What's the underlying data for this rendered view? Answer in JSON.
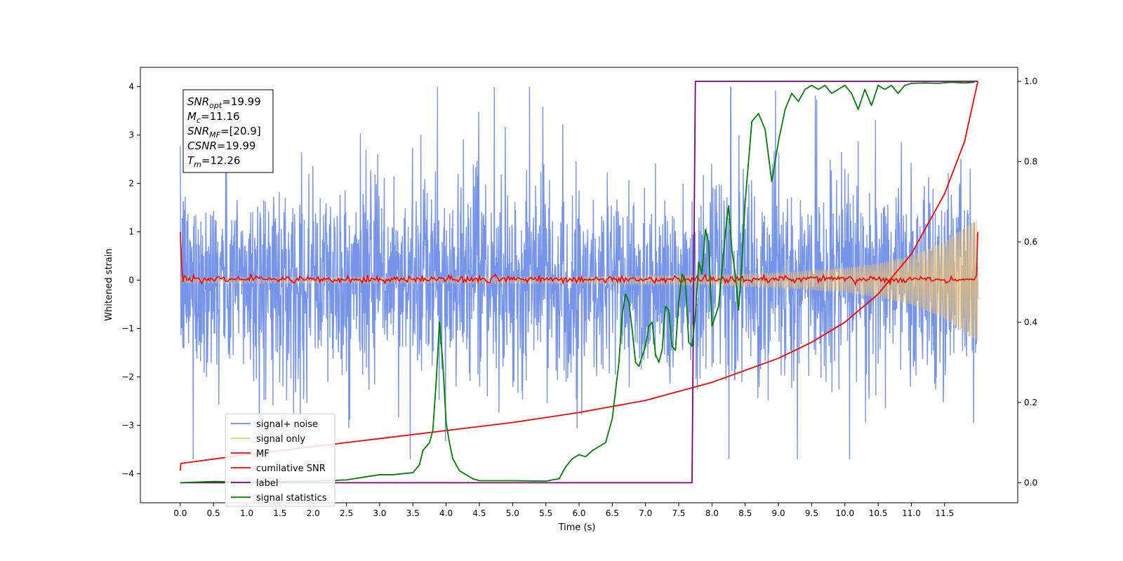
{
  "chart_data": {
    "type": "line",
    "xlabel": "Time (s)",
    "ylabel_left": "Whitened strain",
    "ylabel_right": "",
    "xlim": [
      -0.6,
      12.6
    ],
    "ylim_left": [
      -4.6,
      4.4
    ],
    "ylim_right": [
      -0.05,
      1.035
    ],
    "x_ticks": [
      0.0,
      0.5,
      1.0,
      1.5,
      2.0,
      2.5,
      3.0,
      3.5,
      4.0,
      4.5,
      5.0,
      5.5,
      6.0,
      6.5,
      7.0,
      7.5,
      8.0,
      8.5,
      9.0,
      9.5,
      10.0,
      10.5,
      11.0,
      11.5
    ],
    "x_tick_labels": [
      "0.0",
      "0.5",
      "1.0",
      "1.5",
      "2.0",
      "2.5",
      "3.0",
      "3.5",
      "4.0",
      "4.5",
      "5.0",
      "5.5",
      "6.0",
      "6.5",
      "7.0",
      "7.5",
      "8.0",
      "8.5",
      "9.0",
      "9.5",
      "10.0",
      "10.5",
      "11.0",
      "11.5"
    ],
    "y_left_ticks": [
      -4,
      -3,
      -2,
      -1,
      0,
      1,
      2,
      3,
      4
    ],
    "y_left_tick_labels": [
      "−4",
      "−3",
      "−2",
      "−1",
      "0",
      "1",
      "2",
      "3",
      "4"
    ],
    "y_right_ticks": [
      0.0,
      0.2,
      0.4,
      0.6,
      0.8,
      1.0
    ],
    "y_right_tick_labels": [
      "0.0",
      "0.2",
      "0.4",
      "0.6",
      "0.8",
      "1.0"
    ],
    "grid": false,
    "legend_position": "bottom-left",
    "info_box": {
      "position": "top-left",
      "lines": [
        {
          "base": "SNR",
          "sub": "opt",
          "value": "=19.99"
        },
        {
          "base": "M",
          "sub": "c",
          "value": "=11.16"
        },
        {
          "base": "SNR",
          "sub": "MF",
          "value": "=[20.9]"
        },
        {
          "base": "CSNR",
          "sub": "",
          "value": "=19.99"
        },
        {
          "base": "T",
          "sub": "m",
          "value": "=12.26"
        }
      ]
    },
    "series": [
      {
        "name": "signal+ noise",
        "axis": "left",
        "color": "#6f8ee8",
        "style": "noise band",
        "t_range": [
          0.0,
          12.0
        ],
        "typical_range": [
          -1.6,
          1.6
        ],
        "peak_range": [
          -3.7,
          4.0
        ]
      },
      {
        "name": "signal only",
        "axis": "left",
        "color": "#f2c46c",
        "style": "chirp oscillation",
        "t_range": [
          0.0,
          12.0
        ],
        "envelope_t": [
          0.0,
          6.0,
          8.0,
          9.0,
          10.0,
          10.5,
          11.0,
          11.5,
          12.0
        ],
        "envelope_amp": [
          0.06,
          0.07,
          0.1,
          0.15,
          0.25,
          0.35,
          0.5,
          0.8,
          1.28
        ]
      },
      {
        "name": "MF",
        "axis": "left",
        "color": "#ff0000",
        "style": "noisy near zero",
        "t_range": [
          0.0,
          12.0
        ],
        "start_value": 1.0,
        "end_value": 1.0,
        "typical_range": [
          -0.08,
          0.12
        ]
      },
      {
        "name": "cumilative SNR",
        "axis": "right",
        "color": "#ff0000",
        "x": [
          0.0,
          0.01,
          1.0,
          2.0,
          3.0,
          4.0,
          5.0,
          6.0,
          7.0,
          8.0,
          9.0,
          9.5,
          10.0,
          10.5,
          11.0,
          11.5,
          11.8,
          12.0
        ],
        "y": [
          0.03,
          0.048,
          0.07,
          0.09,
          0.11,
          0.13,
          0.15,
          0.175,
          0.205,
          0.25,
          0.31,
          0.35,
          0.4,
          0.47,
          0.57,
          0.72,
          0.85,
          1.0
        ]
      },
      {
        "name": "label",
        "axis": "right",
        "color": "#800080",
        "x": [
          0.0,
          7.7,
          7.75,
          12.0
        ],
        "y": [
          0.0,
          0.0,
          1.0,
          1.0
        ]
      },
      {
        "name": "signal statistics",
        "axis": "right",
        "color": "#008000",
        "x": [
          0.0,
          0.5,
          1.0,
          1.5,
          2.0,
          2.5,
          2.8,
          3.0,
          3.2,
          3.5,
          3.6,
          3.65,
          3.75,
          3.8,
          3.85,
          3.9,
          3.95,
          4.0,
          4.05,
          4.1,
          4.2,
          4.3,
          4.4,
          4.5,
          5.0,
          5.5,
          5.7,
          5.8,
          5.9,
          6.0,
          6.1,
          6.2,
          6.3,
          6.4,
          6.5,
          6.6,
          6.65,
          6.7,
          6.75,
          6.8,
          6.85,
          6.9,
          7.0,
          7.05,
          7.1,
          7.15,
          7.2,
          7.25,
          7.3,
          7.35,
          7.4,
          7.45,
          7.5,
          7.55,
          7.6,
          7.65,
          7.7,
          7.75,
          7.8,
          7.85,
          7.9,
          7.95,
          8.0,
          8.1,
          8.2,
          8.25,
          8.3,
          8.35,
          8.4,
          8.45,
          8.5,
          8.55,
          8.6,
          8.7,
          8.8,
          8.9,
          9.0,
          9.1,
          9.2,
          9.3,
          9.4,
          9.5,
          9.6,
          9.7,
          9.8,
          9.9,
          10.0,
          10.1,
          10.2,
          10.3,
          10.4,
          10.5,
          10.6,
          10.7,
          10.8,
          10.9,
          11.0,
          11.2,
          11.4,
          11.6,
          11.8,
          11.95
        ],
        "y": [
          0.0,
          0.003,
          0.002,
          0.003,
          0.004,
          0.007,
          0.015,
          0.02,
          0.02,
          0.025,
          0.045,
          0.08,
          0.1,
          0.13,
          0.25,
          0.4,
          0.3,
          0.15,
          0.1,
          0.06,
          0.03,
          0.02,
          0.01,
          0.005,
          0.005,
          0.004,
          0.01,
          0.04,
          0.06,
          0.07,
          0.065,
          0.08,
          0.09,
          0.1,
          0.16,
          0.3,
          0.42,
          0.47,
          0.45,
          0.38,
          0.3,
          0.29,
          0.34,
          0.39,
          0.4,
          0.32,
          0.3,
          0.33,
          0.44,
          0.43,
          0.34,
          0.33,
          0.45,
          0.52,
          0.5,
          0.35,
          0.34,
          0.42,
          0.55,
          0.52,
          0.63,
          0.6,
          0.39,
          0.44,
          0.62,
          0.69,
          0.58,
          0.52,
          0.43,
          0.55,
          0.7,
          0.8,
          0.9,
          0.92,
          0.88,
          0.75,
          0.85,
          0.93,
          0.97,
          0.95,
          0.98,
          0.99,
          0.98,
          0.99,
          0.97,
          0.98,
          0.99,
          0.97,
          0.93,
          0.98,
          0.94,
          0.99,
          0.98,
          0.99,
          0.97,
          0.99,
          0.995,
          0.996,
          0.995,
          0.998,
          0.996,
          0.998
        ],
        "note_points": "right axis value sampled"
      }
    ]
  }
}
